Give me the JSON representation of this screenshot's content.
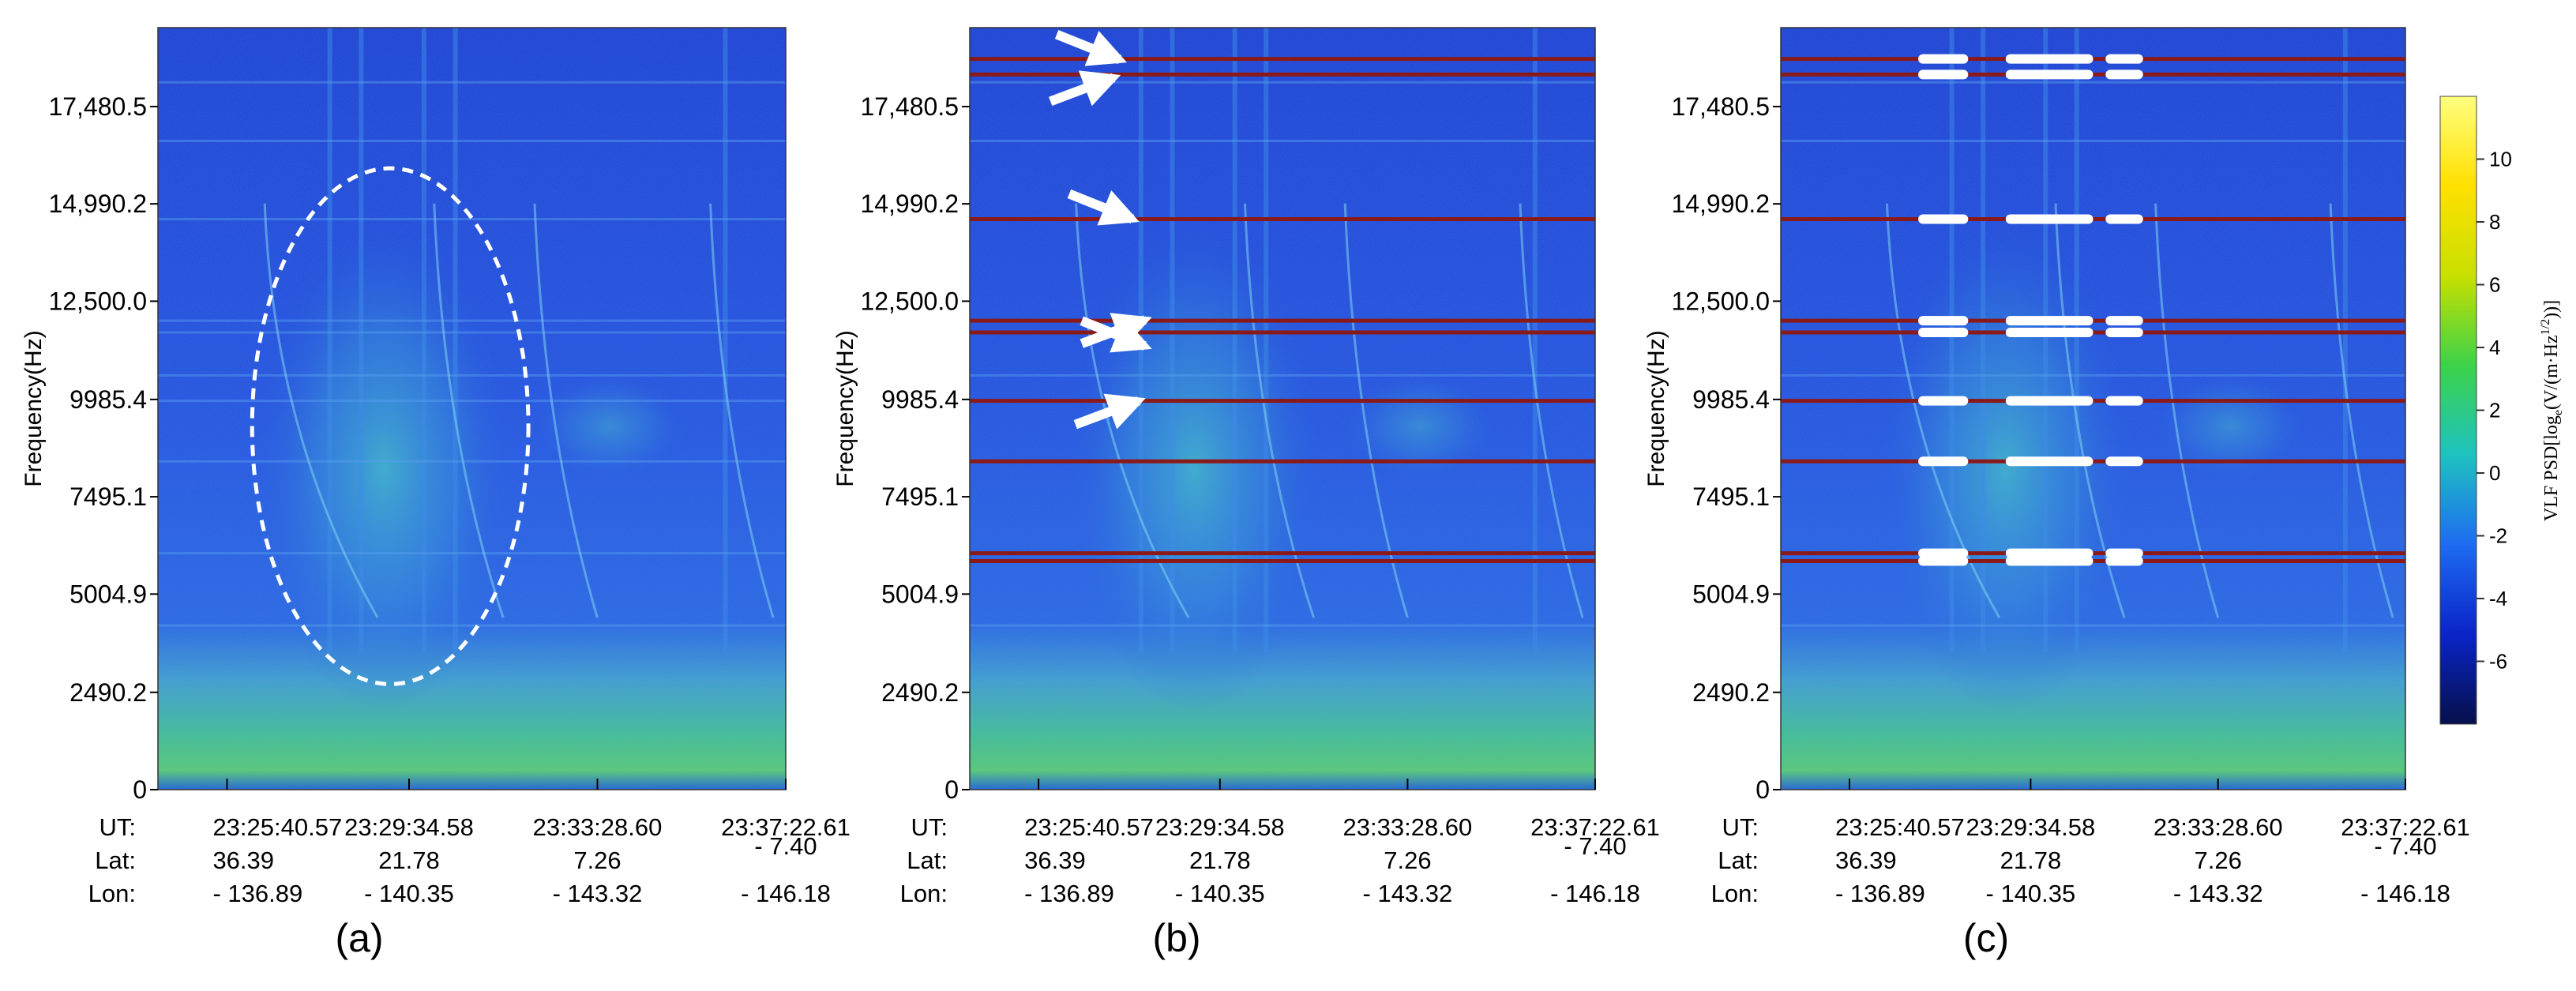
{
  "chart_data": [
    {
      "type": "heatmap",
      "panel_label": "(a)",
      "ylabel": "Frequency(Hz)",
      "y_ticks": [
        "17,480.5",
        "14,990.2",
        "12,500.0",
        "9985.4",
        "7495.1",
        "5004.9",
        "2490.2",
        "0"
      ],
      "y_tick_values": [
        17480.5,
        14990.2,
        12500.0,
        9985.4,
        7495.1,
        5004.9,
        2490.2,
        0
      ],
      "ylim": [
        0,
        19500
      ],
      "x_rows": [
        {
          "label": "UT:",
          "ticks": [
            "23:25:40.57",
            "23:29:34.58",
            "23:33:28.60",
            "23:37:22.61"
          ]
        },
        {
          "label": "Lat:",
          "ticks": [
            "36.39",
            "21.78",
            "7.26",
            "- 7.40"
          ]
        },
        {
          "label": "Lon:",
          "ticks": [
            "- 136.89",
            "- 140.35",
            "- 143.32",
            "- 146.18"
          ]
        }
      ],
      "x_tick_fractions": [
        0.11,
        0.4,
        0.7,
        1.0
      ],
      "annotation": "dashed ellipse around broadband emission",
      "ellipse": {
        "x_center_frac": 0.37,
        "freq_center": 9300,
        "x_half_frac": 0.22,
        "freq_half": 6600
      },
      "interference_lines": []
    },
    {
      "type": "heatmap",
      "panel_label": "(b)",
      "ylabel": "Frequency(Hz)",
      "y_ticks": [
        "17,480.5",
        "14,990.2",
        "12,500.0",
        "9985.4",
        "7495.1",
        "5004.9",
        "2490.2",
        "0"
      ],
      "y_tick_values": [
        17480.5,
        14990.2,
        12500.0,
        9985.4,
        7495.1,
        5004.9,
        2490.2,
        0
      ],
      "ylim": [
        0,
        19500
      ],
      "x_rows": [
        {
          "label": "UT:",
          "ticks": [
            "23:25:40.57",
            "23:29:34.58",
            "23:33:28.60",
            "23:37:22.61"
          ]
        },
        {
          "label": "Lat:",
          "ticks": [
            "36.39",
            "21.78",
            "7.26",
            "- 7.40"
          ]
        },
        {
          "label": "Lon:",
          "ticks": [
            "- 136.89",
            "- 140.35",
            "- 143.32",
            "- 146.18"
          ]
        }
      ],
      "x_tick_fractions": [
        0.11,
        0.4,
        0.7,
        1.0
      ],
      "annotation": "white arrows pointing at interference lines",
      "arrow_targets_hz": [
        18680,
        18220,
        14600,
        12020,
        11350,
        9950
      ],
      "interference_lines": [
        18700,
        18300,
        14600,
        12000,
        11700,
        9950,
        8400,
        6050,
        5850
      ]
    },
    {
      "type": "heatmap",
      "panel_label": "(c)",
      "ylabel": "Frequency(Hz)",
      "y_ticks": [
        "17,480.5",
        "14,990.2",
        "12,500.0",
        "9985.4",
        "7495.1",
        "5004.9",
        "2490.2",
        "0"
      ],
      "y_tick_values": [
        17480.5,
        14990.2,
        12500.0,
        9985.4,
        7495.1,
        5004.9,
        2490.2,
        0
      ],
      "ylim": [
        0,
        19500
      ],
      "x_rows": [
        {
          "label": "UT:",
          "ticks": [
            "23:25:40.57",
            "23:29:34.58",
            "23:33:28.60",
            "23:37:22.61"
          ]
        },
        {
          "label": "Lat:",
          "ticks": [
            "36.39",
            "21.78",
            "7.26",
            "- 7.40"
          ]
        },
        {
          "label": "Lon:",
          "ticks": [
            "- 136.89",
            "- 140.35",
            "- 143.32",
            "- 146.18"
          ]
        }
      ],
      "x_tick_fractions": [
        0.11,
        0.4,
        0.7,
        1.0
      ],
      "annotation": "white segments mark removed interference",
      "interference_lines": [
        18700,
        18300,
        14600,
        12000,
        11700,
        9950,
        8400,
        6050,
        5850
      ]
    }
  ],
  "colorbar": {
    "title": "VLF PSD[log",
    "title_sub": "e",
    "title_rest": "(V/(m·Hz",
    "title_sup": "1/2",
    "title_end": "))]",
    "ticks": [
      "10",
      "8",
      "6",
      "4",
      "2",
      "0",
      "-2",
      "-4",
      "-6"
    ],
    "tick_values": [
      10,
      8,
      6,
      4,
      2,
      0,
      -2,
      -4,
      -6
    ],
    "range": [
      -8,
      12
    ],
    "stops": [
      "#06104a",
      "#0a24c8",
      "#1e6cf0",
      "#1fc2c0",
      "#3cd24a",
      "#c8e000",
      "#ffe000",
      "#ffff80"
    ]
  },
  "colors": {
    "spectrogram_base": "#1f4fd6",
    "low_band": "#3bbf88",
    "interference": "#8a1a1a",
    "mask": "#ffffff"
  }
}
